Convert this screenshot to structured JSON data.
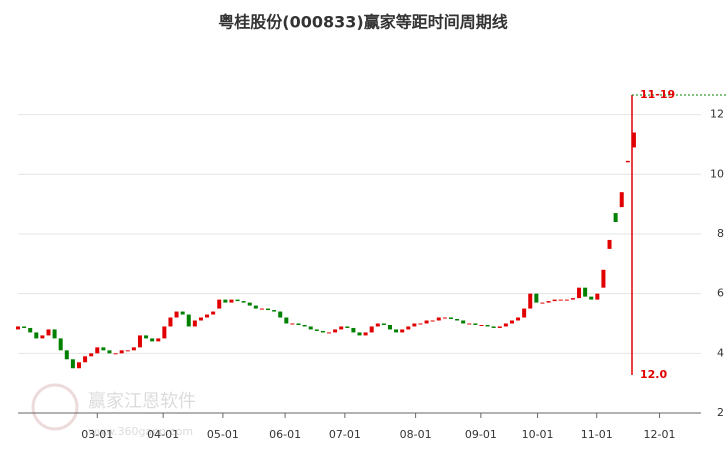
{
  "chart_data": {
    "type": "candlestick",
    "title": "粤桂股份(000833)赢家等距时间周期线",
    "watermark": [
      "赢家江恩软件",
      "www.360gann.com"
    ],
    "annotations": [
      "11-19",
      "12.0"
    ],
    "open": [
      4.8,
      4.9,
      4.85,
      4.7,
      4.5,
      4.6,
      4.8,
      4.5,
      4.1,
      3.8,
      3.5,
      3.7,
      3.9,
      4.0,
      4.2,
      4.1,
      4.0,
      4.0,
      4.1,
      4.1,
      4.2,
      4.6,
      4.5,
      4.4,
      4.5,
      4.9,
      5.2,
      5.4,
      5.3,
      4.9,
      5.1,
      5.2,
      5.3,
      5.5,
      5.8,
      5.7,
      5.8,
      5.75,
      5.7,
      5.6,
      5.5,
      5.5,
      5.45,
      5.4,
      5.2,
      5.0,
      5.0,
      4.95,
      4.9,
      4.8,
      4.75,
      4.7,
      4.7,
      4.8,
      4.9,
      4.85,
      4.7,
      4.6,
      4.7,
      4.9,
      5.0,
      4.95,
      4.8,
      4.7,
      4.8,
      4.9,
      5.0,
      5.0,
      5.1,
      5.1,
      5.2,
      5.2,
      5.15,
      5.1,
      5.0,
      5.0,
      4.95,
      4.95,
      4.9,
      4.85,
      4.9,
      5.0,
      5.1,
      5.2,
      5.5,
      6.0,
      5.7,
      5.7,
      5.75,
      5.8,
      5.8,
      5.8,
      5.85,
      6.2,
      5.9,
      5.8,
      6.2,
      7.5,
      8.7,
      8.9,
      10.4,
      10.9
    ],
    "close": [
      4.9,
      4.85,
      4.7,
      4.5,
      4.6,
      4.8,
      4.5,
      4.1,
      3.8,
      3.5,
      3.7,
      3.9,
      4.0,
      4.2,
      4.1,
      4.0,
      4.0,
      4.1,
      4.1,
      4.2,
      4.6,
      4.5,
      4.4,
      4.5,
      4.9,
      5.2,
      5.4,
      5.3,
      4.9,
      5.1,
      5.2,
      5.3,
      5.4,
      5.8,
      5.7,
      5.8,
      5.75,
      5.7,
      5.6,
      5.5,
      5.5,
      5.45,
      5.4,
      5.2,
      5.0,
      5.0,
      4.95,
      4.9,
      4.8,
      4.75,
      4.7,
      4.7,
      4.8,
      4.9,
      4.85,
      4.7,
      4.6,
      4.7,
      4.9,
      5.0,
      4.95,
      4.8,
      4.7,
      4.8,
      4.9,
      5.0,
      5.0,
      5.1,
      5.1,
      5.2,
      5.2,
      5.15,
      5.1,
      5.0,
      5.0,
      4.95,
      4.95,
      4.9,
      4.85,
      4.9,
      5.0,
      5.1,
      5.2,
      5.5,
      6.0,
      5.7,
      5.7,
      5.75,
      5.8,
      5.8,
      5.8,
      5.85,
      6.2,
      5.9,
      5.8,
      6.0,
      6.8,
      7.8,
      8.4,
      9.4,
      10.45,
      11.4
    ],
    "up_color": "#e00000",
    "down_color": "#008000",
    "xlim": [
      0,
      112
    ],
    "xticks": [
      {
        "value": 13,
        "label": "03-01"
      },
      {
        "value": 23.8,
        "label": "04-01"
      },
      {
        "value": 33.6,
        "label": "05-01"
      },
      {
        "value": 43.8,
        "label": "06-01"
      },
      {
        "value": 53.6,
        "label": "07-01"
      },
      {
        "value": 65.2,
        "label": "08-01"
      },
      {
        "value": 75.9,
        "label": "09-01"
      },
      {
        "value": 85.2,
        "label": "10-01"
      },
      {
        "value": 94.9,
        "label": "11-01"
      },
      {
        "value": 105.2,
        "label": "12-01"
      }
    ],
    "ylim": [
      2,
      14.5
    ],
    "yticks": [
      2,
      4,
      6,
      8,
      10,
      12
    ],
    "grid": true
  }
}
